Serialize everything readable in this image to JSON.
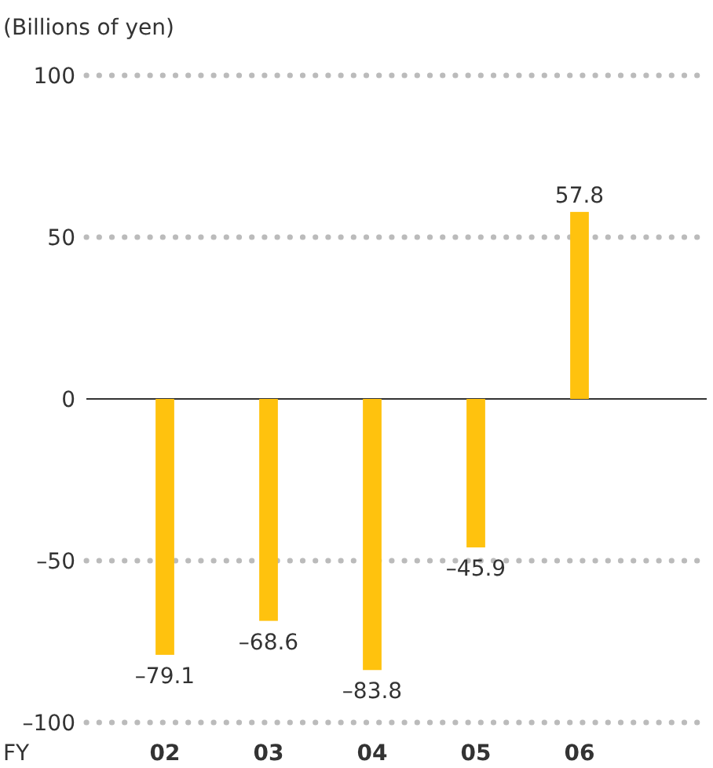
{
  "chart_data": {
    "type": "bar",
    "ylabel": "(Billions of yen)",
    "xlabel": "FY",
    "categories": [
      "02",
      "03",
      "04",
      "05",
      "06"
    ],
    "values": [
      -79.1,
      -68.6,
      -83.8,
      -45.9,
      57.8
    ],
    "value_labels": [
      "–79.1",
      "–68.6",
      "–83.8",
      "–45.9",
      "57.8"
    ],
    "color": "#ffc20e",
    "ylim": [
      -100,
      100
    ],
    "yticks": [
      {
        "value": -100,
        "label": "–100"
      },
      {
        "value": -50,
        "label": "–50"
      },
      0,
      50,
      100
    ],
    "grid": "y",
    "line_style": "dotted"
  }
}
